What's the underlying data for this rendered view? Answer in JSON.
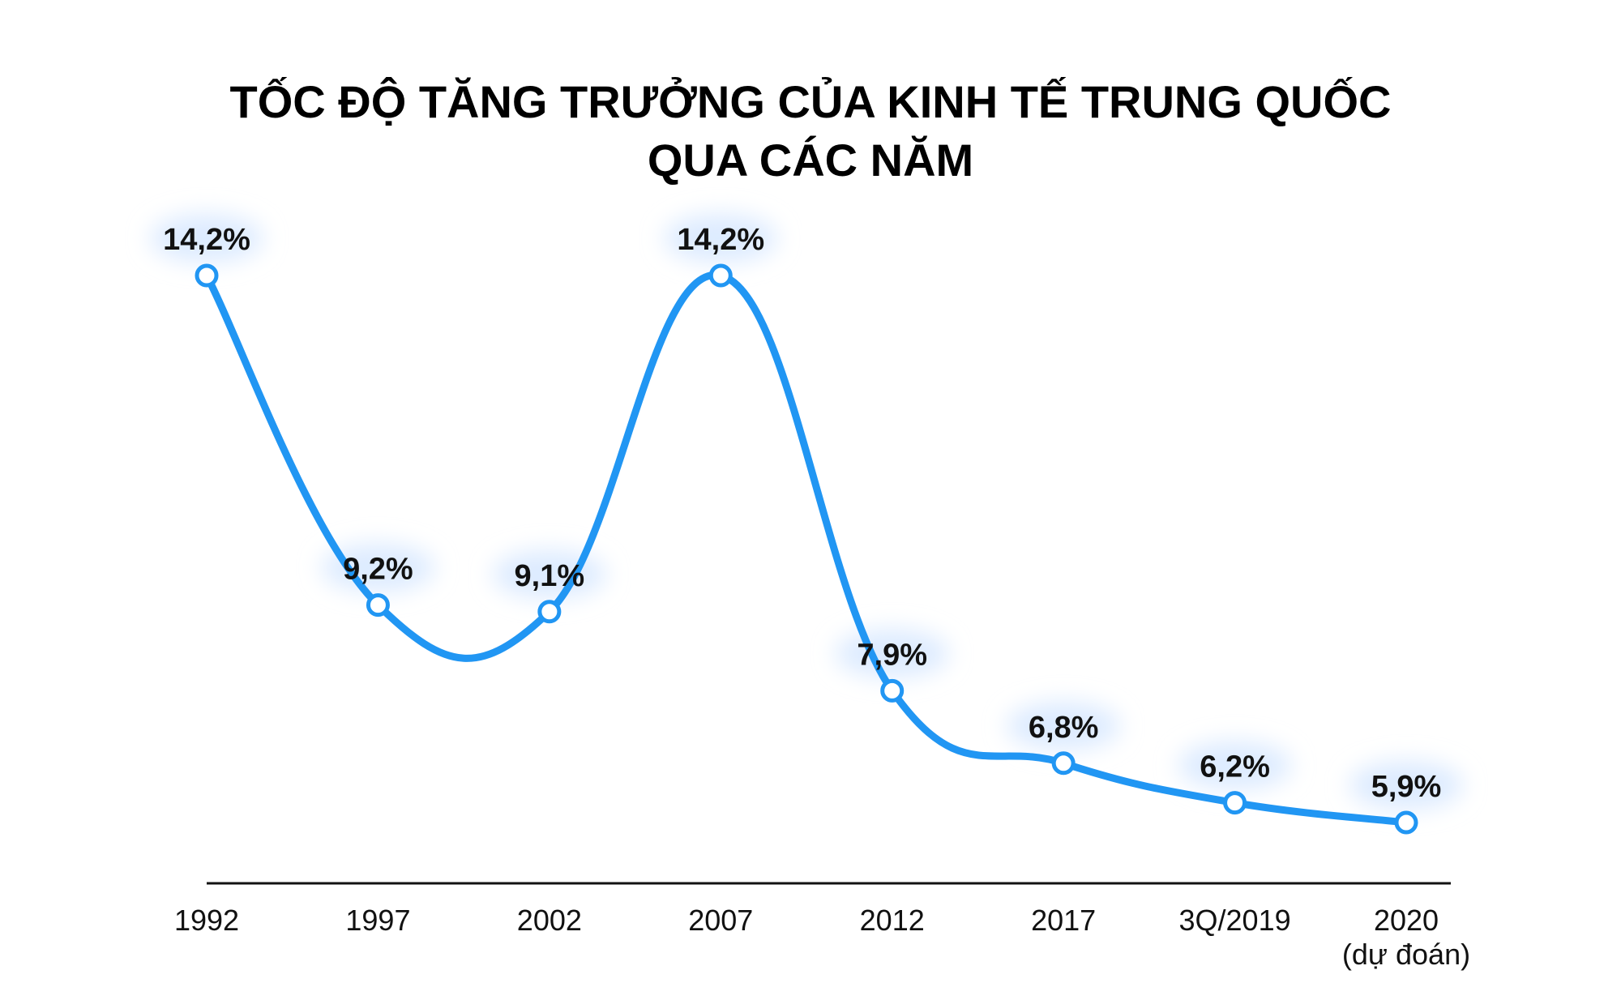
{
  "chart_data": {
    "type": "line",
    "title_lines": [
      "TỐC ĐỘ TĂNG TRƯỞNG CỦA KINH TẾ TRUNG QUỐC",
      "QUA CÁC NĂM"
    ],
    "categories": [
      {
        "label": "1992",
        "sublabel": ""
      },
      {
        "label": "1997",
        "sublabel": ""
      },
      {
        "label": "2002",
        "sublabel": ""
      },
      {
        "label": "2007",
        "sublabel": ""
      },
      {
        "label": "2012",
        "sublabel": ""
      },
      {
        "label": "2017",
        "sublabel": ""
      },
      {
        "label": "3Q/2019",
        "sublabel": ""
      },
      {
        "label": "2020",
        "sublabel": "(dự đoán)"
      }
    ],
    "values": [
      14.2,
      9.2,
      9.1,
      14.2,
      7.9,
      6.8,
      6.2,
      5.9
    ],
    "value_labels": [
      "14,2%",
      "9,2%",
      "9,1%",
      "14,2%",
      "7,9%",
      "6,8%",
      "6,2%",
      "5,9%"
    ],
    "line_color": "#2196F3",
    "label_glow_color": "#DDEBFF",
    "grid": false,
    "legend": "none"
  }
}
